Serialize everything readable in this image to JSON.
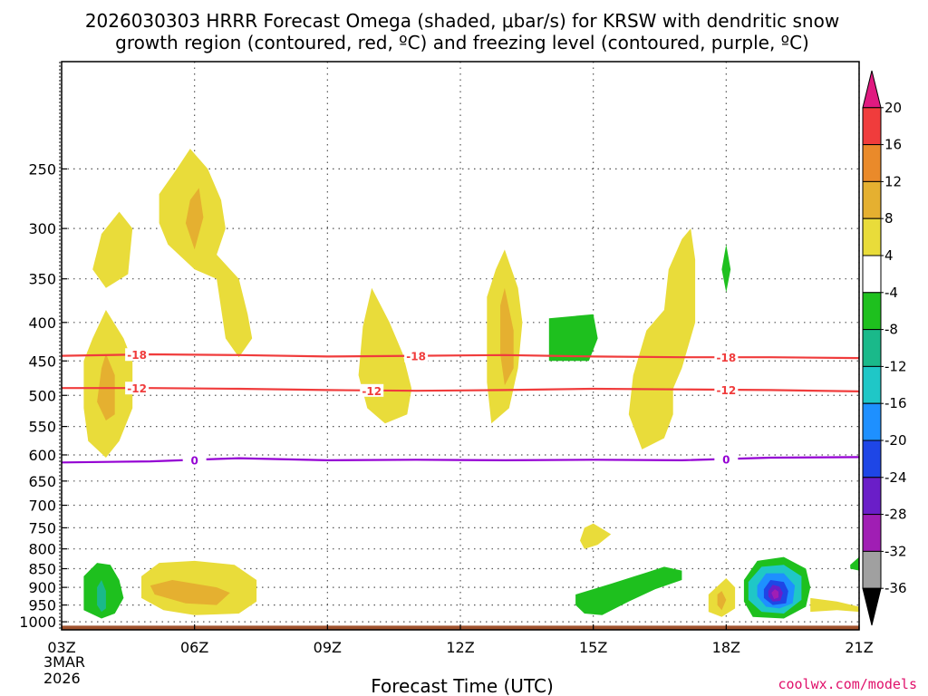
{
  "chart_data": {
    "type": "heatmap",
    "title_line1": "2026030303 HRRR Forecast Omega (shaded, μbar/s) for KRSW with dendritic snow",
    "title_line2": "growth region (contoured, red, ºC) and freezing level (contoured, purple, ºC)",
    "xlabel": "Forecast Time (UTC)",
    "x_ticks": [
      {
        "hour": 3,
        "label": "03Z"
      },
      {
        "hour": 6,
        "label": "06Z"
      },
      {
        "hour": 9,
        "label": "09Z"
      },
      {
        "hour": 12,
        "label": "12Z"
      },
      {
        "hour": 15,
        "label": "15Z"
      },
      {
        "hour": 18,
        "label": "18Z"
      },
      {
        "hour": 21,
        "label": "21Z"
      }
    ],
    "date_label_line1": "3MAR",
    "date_label_line2": "2026",
    "x_range": [
      3,
      21
    ],
    "y_ticks": [
      250,
      300,
      350,
      400,
      450,
      500,
      550,
      600,
      650,
      700,
      750,
      800,
      850,
      900,
      950,
      1000
    ],
    "y_range_hpa": [
      180,
      1025
    ],
    "colorbar": {
      "labels": [
        "20",
        "16",
        "12",
        "8",
        "4",
        "-4",
        "-8",
        "-12",
        "-16",
        "-20",
        "-24",
        "-28",
        "-32",
        "-36"
      ],
      "colors": [
        "#e01a80",
        "#f03c3c",
        "#ea8a2a",
        "#e5b030",
        "#e9dc3a",
        "#ffffff",
        "#1ec01e",
        "#1ab98a",
        "#1fc7c7",
        "#1e90ff",
        "#1e46e6",
        "#6a1ec8",
        "#a01eb4",
        "#a0a0a0",
        "#000000"
      ]
    },
    "dendritic_contours": [
      {
        "temp": -18,
        "label": "-18",
        "color": "#f03c3c",
        "hpa": [
          443,
          441,
          442,
          444,
          443,
          442,
          444,
          445,
          445,
          446
        ],
        "label_hours": [
          4.7,
          11.0,
          18.0
        ]
      },
      {
        "temp": -12,
        "label": "-12",
        "color": "#f03c3c",
        "hpa": [
          489,
          489,
          490,
          492,
          493,
          492,
          490,
          491,
          492,
          494
        ],
        "label_hours": [
          4.7,
          10.0,
          18.0
        ]
      }
    ],
    "freezing_level": {
      "temp": 0,
      "label": "0",
      "color": "#9400d3",
      "hpa": [
        614,
        612,
        606,
        610,
        609,
        610,
        609,
        610,
        605,
        604
      ],
      "label_hours": [
        6.0,
        18.0
      ]
    },
    "omega_areas": [
      {
        "value": 4,
        "pts": [
          [
            3.9,
            305
          ],
          [
            4.3,
            285
          ],
          [
            4.6,
            300
          ],
          [
            4.5,
            345
          ],
          [
            4.0,
            360
          ],
          [
            3.7,
            340
          ]
        ]
      },
      {
        "value": 4,
        "pts": [
          [
            3.5,
            450
          ],
          [
            3.7,
            420
          ],
          [
            4.0,
            385
          ],
          [
            4.4,
            420
          ],
          [
            4.6,
            450
          ],
          [
            4.6,
            520
          ],
          [
            4.3,
            575
          ],
          [
            4.0,
            605
          ],
          [
            3.6,
            575
          ],
          [
            3.5,
            520
          ]
        ]
      },
      {
        "value": 8,
        "pts": [
          [
            4.0,
            440
          ],
          [
            4.2,
            470
          ],
          [
            4.2,
            530
          ],
          [
            4.0,
            540
          ],
          [
            3.8,
            510
          ],
          [
            3.9,
            460
          ]
        ]
      },
      {
        "value": 4,
        "pts": [
          [
            5.2,
            270
          ],
          [
            5.6,
            250
          ],
          [
            5.9,
            235
          ],
          [
            6.3,
            250
          ],
          [
            6.6,
            275
          ],
          [
            6.7,
            300
          ],
          [
            6.5,
            325
          ],
          [
            7.0,
            350
          ],
          [
            7.2,
            390
          ],
          [
            7.3,
            420
          ],
          [
            7.0,
            445
          ],
          [
            6.7,
            420
          ],
          [
            6.5,
            350
          ],
          [
            6.0,
            340
          ],
          [
            5.4,
            315
          ],
          [
            5.2,
            295
          ]
        ]
      },
      {
        "value": 8,
        "pts": [
          [
            5.9,
            275
          ],
          [
            6.1,
            265
          ],
          [
            6.2,
            290
          ],
          [
            6.0,
            320
          ],
          [
            5.8,
            295
          ]
        ]
      },
      {
        "value": 4,
        "pts": [
          [
            9.8,
            405
          ],
          [
            10.0,
            360
          ],
          [
            10.4,
            400
          ],
          [
            10.7,
            440
          ],
          [
            10.9,
            490
          ],
          [
            10.8,
            530
          ],
          [
            10.3,
            545
          ],
          [
            9.9,
            520
          ],
          [
            9.7,
            470
          ]
        ]
      },
      {
        "value": 4,
        "pts": [
          [
            12.6,
            370
          ],
          [
            12.8,
            340
          ],
          [
            13.0,
            320
          ],
          [
            13.3,
            360
          ],
          [
            13.4,
            400
          ],
          [
            13.3,
            460
          ],
          [
            13.1,
            520
          ],
          [
            12.7,
            545
          ],
          [
            12.6,
            480
          ]
        ]
      },
      {
        "value": 8,
        "pts": [
          [
            12.9,
            380
          ],
          [
            13.0,
            360
          ],
          [
            13.2,
            410
          ],
          [
            13.2,
            460
          ],
          [
            13.0,
            485
          ],
          [
            12.9,
            440
          ]
        ]
      },
      {
        "value": -4,
        "pts": [
          [
            14.0,
            395
          ],
          [
            15.0,
            390
          ],
          [
            15.1,
            420
          ],
          [
            14.9,
            450
          ],
          [
            14.0,
            450
          ]
        ]
      },
      {
        "value": 4,
        "pts": [
          [
            16.2,
            410
          ],
          [
            16.6,
            385
          ],
          [
            16.7,
            340
          ],
          [
            17.0,
            310
          ],
          [
            17.2,
            300
          ],
          [
            17.3,
            330
          ],
          [
            17.3,
            400
          ],
          [
            17.0,
            460
          ],
          [
            16.8,
            490
          ],
          [
            16.8,
            530
          ],
          [
            16.6,
            570
          ],
          [
            16.1,
            590
          ],
          [
            15.8,
            530
          ],
          [
            15.9,
            470
          ]
        ]
      },
      {
        "value": -4,
        "pts": [
          [
            18.0,
            315
          ],
          [
            18.1,
            340
          ],
          [
            18.0,
            365
          ],
          [
            17.9,
            340
          ]
        ]
      },
      {
        "value": 4,
        "pts": [
          [
            14.8,
            750
          ],
          [
            15.0,
            740
          ],
          [
            15.4,
            765
          ],
          [
            15.1,
            790
          ],
          [
            14.8,
            800
          ],
          [
            14.7,
            780
          ]
        ]
      },
      {
        "value": -4,
        "pts": [
          [
            3.5,
            870
          ],
          [
            3.8,
            835
          ],
          [
            4.1,
            840
          ],
          [
            4.3,
            880
          ],
          [
            4.4,
            930
          ],
          [
            4.2,
            975
          ],
          [
            3.9,
            990
          ],
          [
            3.5,
            965
          ]
        ]
      },
      {
        "value": -8,
        "pts": [
          [
            3.8,
            900
          ],
          [
            3.9,
            880
          ],
          [
            4.0,
            910
          ],
          [
            4.0,
            960
          ],
          [
            3.9,
            970
          ],
          [
            3.8,
            950
          ]
        ]
      },
      {
        "value": 4,
        "pts": [
          [
            4.8,
            870
          ],
          [
            5.2,
            835
          ],
          [
            6.0,
            830
          ],
          [
            6.9,
            840
          ],
          [
            7.4,
            880
          ],
          [
            7.4,
            940
          ],
          [
            7.0,
            975
          ],
          [
            6.0,
            980
          ],
          [
            5.3,
            965
          ],
          [
            4.8,
            930
          ]
        ]
      },
      {
        "value": 8,
        "pts": [
          [
            5.0,
            895
          ],
          [
            5.5,
            880
          ],
          [
            6.5,
            900
          ],
          [
            6.8,
            915
          ],
          [
            6.5,
            950
          ],
          [
            5.8,
            945
          ],
          [
            5.1,
            920
          ]
        ]
      },
      {
        "value": -4,
        "pts": [
          [
            14.6,
            920
          ],
          [
            15.4,
            890
          ],
          [
            16.2,
            860
          ],
          [
            16.6,
            845
          ],
          [
            17.0,
            855
          ],
          [
            17.0,
            880
          ],
          [
            16.4,
            905
          ],
          [
            15.8,
            940
          ],
          [
            15.2,
            980
          ],
          [
            14.8,
            975
          ],
          [
            14.6,
            950
          ]
        ]
      },
      {
        "value": 4,
        "pts": [
          [
            17.6,
            920
          ],
          [
            18.0,
            875
          ],
          [
            18.2,
            900
          ],
          [
            18.2,
            960
          ],
          [
            17.9,
            985
          ],
          [
            17.6,
            970
          ]
        ]
      },
      {
        "value": 8,
        "pts": [
          [
            17.8,
            920
          ],
          [
            17.9,
            910
          ],
          [
            18.0,
            935
          ],
          [
            17.9,
            965
          ],
          [
            17.8,
            950
          ]
        ]
      },
      {
        "value": -4,
        "pts": [
          [
            18.4,
            880
          ],
          [
            18.7,
            830
          ],
          [
            19.3,
            820
          ],
          [
            19.8,
            850
          ],
          [
            19.9,
            900
          ],
          [
            19.8,
            955
          ],
          [
            19.3,
            990
          ],
          [
            18.6,
            985
          ],
          [
            18.4,
            940
          ]
        ]
      },
      {
        "value": -12,
        "pts": [
          [
            18.5,
            885
          ],
          [
            18.8,
            845
          ],
          [
            19.3,
            840
          ],
          [
            19.7,
            870
          ],
          [
            19.7,
            935
          ],
          [
            19.3,
            975
          ],
          [
            18.8,
            970
          ],
          [
            18.5,
            935
          ]
        ]
      },
      {
        "value": -16,
        "pts": [
          [
            18.7,
            895
          ],
          [
            18.9,
            862
          ],
          [
            19.3,
            862
          ],
          [
            19.55,
            895
          ],
          [
            19.5,
            945
          ],
          [
            19.2,
            960
          ],
          [
            18.9,
            955
          ],
          [
            18.7,
            925
          ]
        ]
      },
      {
        "value": -20,
        "pts": [
          [
            18.85,
            905
          ],
          [
            19.0,
            880
          ],
          [
            19.3,
            885
          ],
          [
            19.4,
            910
          ],
          [
            19.35,
            945
          ],
          [
            19.05,
            950
          ],
          [
            18.85,
            930
          ]
        ]
      },
      {
        "value": -24,
        "pts": [
          [
            18.95,
            910
          ],
          [
            19.05,
            893
          ],
          [
            19.2,
            898
          ],
          [
            19.28,
            915
          ],
          [
            19.22,
            938
          ],
          [
            19.05,
            940
          ],
          [
            18.95,
            925
          ]
        ]
      },
      {
        "value": -28,
        "pts": [
          [
            19.02,
            915
          ],
          [
            19.1,
            905
          ],
          [
            19.18,
            912
          ],
          [
            19.18,
            928
          ],
          [
            19.08,
            933
          ]
        ]
      },
      {
        "value": 4,
        "pts": [
          [
            19.9,
            930
          ],
          [
            20.5,
            940
          ],
          [
            21.0,
            955
          ],
          [
            21.0,
            970
          ],
          [
            20.5,
            965
          ],
          [
            19.9,
            970
          ]
        ]
      },
      {
        "value": -4,
        "pts": [
          [
            20.8,
            840
          ],
          [
            21.0,
            820
          ],
          [
            21.0,
            855
          ],
          [
            20.8,
            850
          ]
        ]
      }
    ],
    "terrain_hpa": 1012
  },
  "credit": "coolwx.com/models"
}
